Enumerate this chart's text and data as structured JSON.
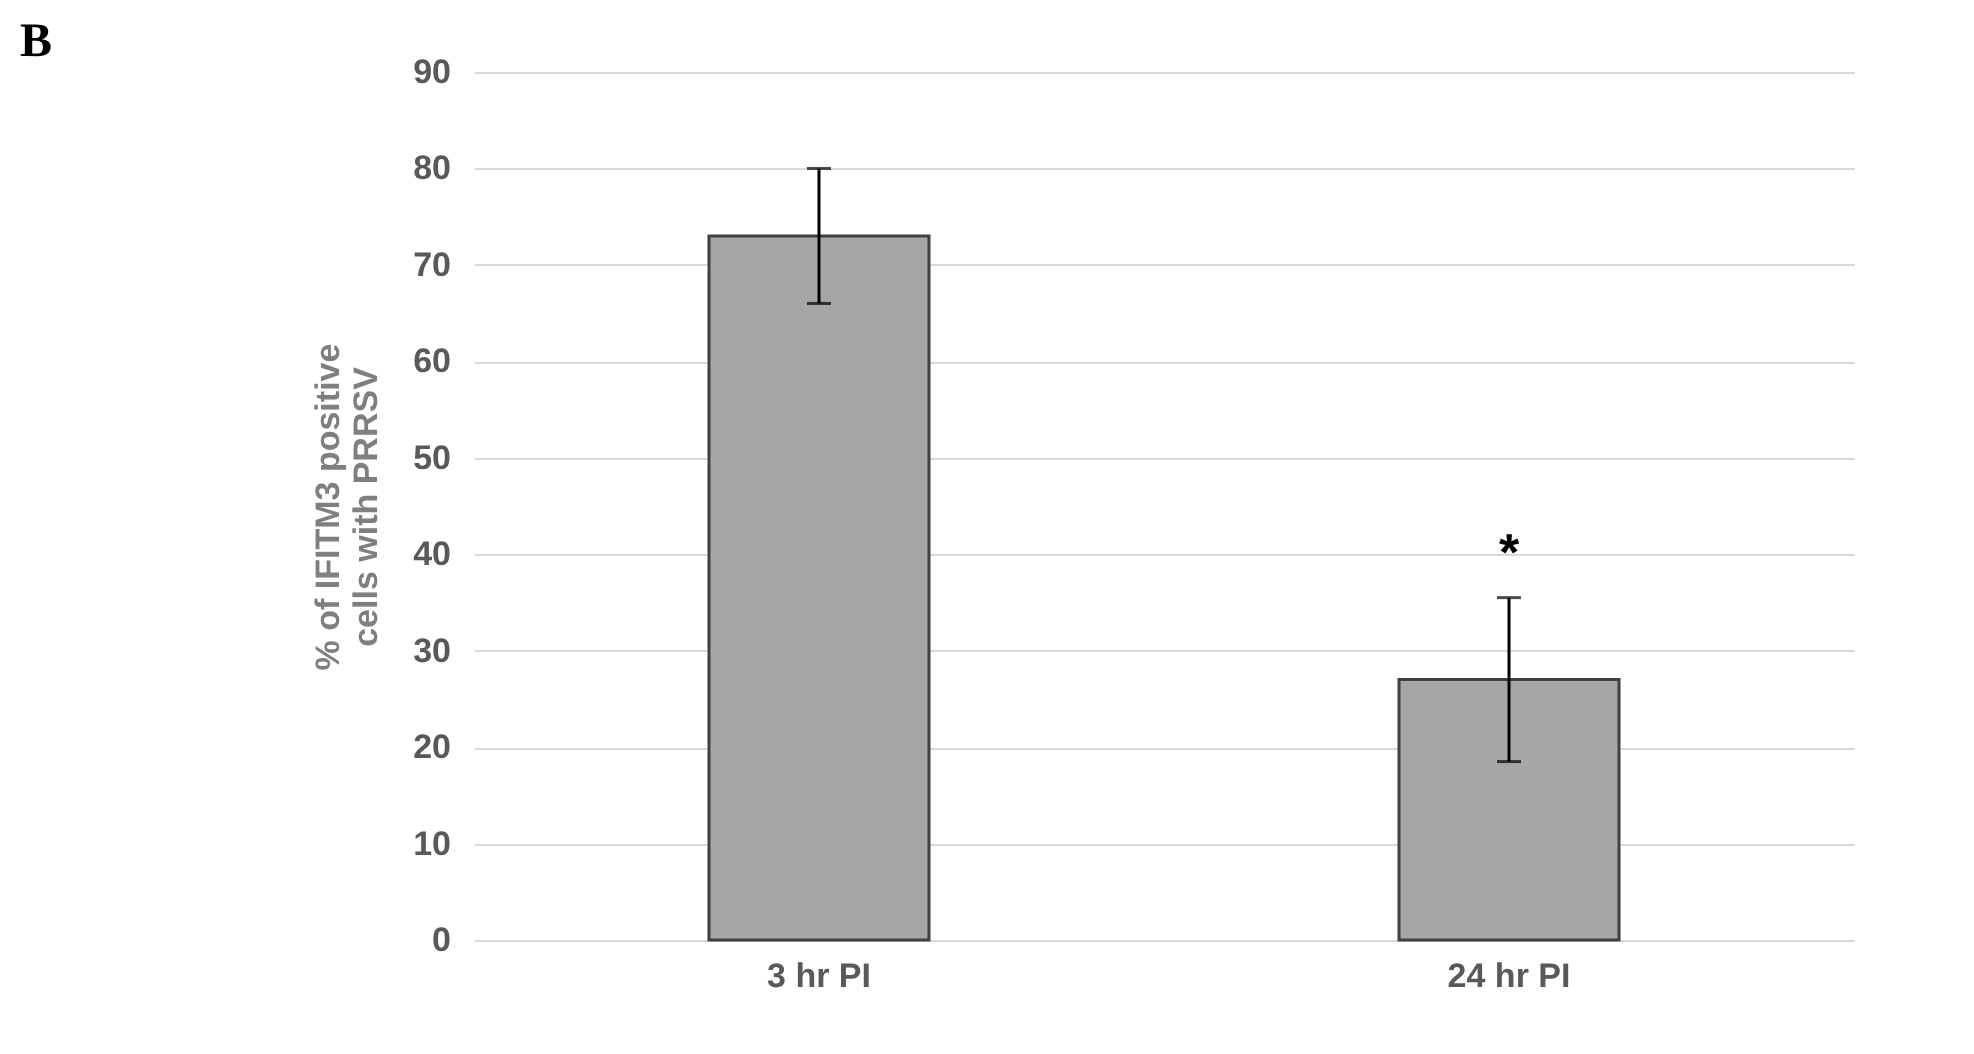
{
  "chart_data": {
    "type": "bar",
    "categories": [
      "3 hr PI",
      "24 hr PI"
    ],
    "values": [
      73,
      27
    ],
    "errors": [
      7,
      8.5
    ],
    "color": "#a6a6a6",
    "ylabel": "% of IFITM3 positive cells with PRRSV",
    "ylim": [
      0,
      90
    ],
    "yticks": [
      0,
      10,
      20,
      30,
      40,
      50,
      60,
      70,
      80,
      90
    ],
    "grid": "y",
    "annotations": [
      "B",
      {
        "text": "*",
        "x": "24 hr PI",
        "y": 35.5
      }
    ]
  }
}
